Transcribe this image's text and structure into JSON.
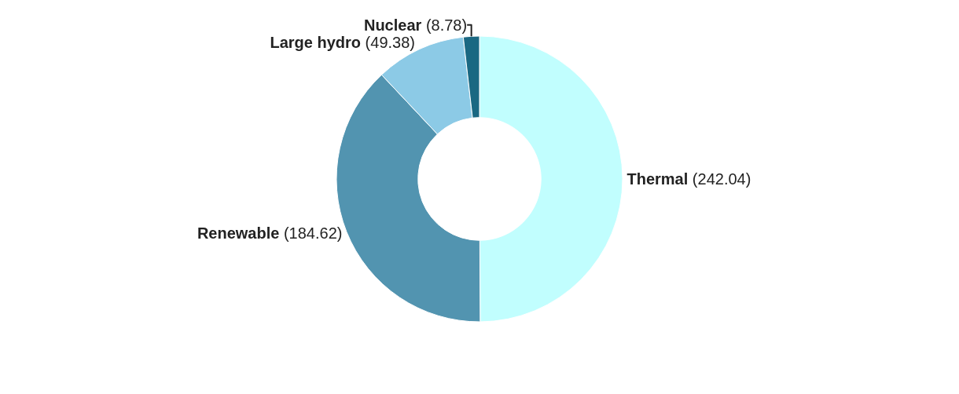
{
  "chart_data": {
    "type": "donut",
    "categories": [
      "Thermal",
      "Renewable",
      "Large hydro",
      "Nuclear"
    ],
    "values": [
      242.04,
      184.62,
      49.38,
      8.78
    ],
    "colors": [
      "#c1fefe",
      "#5294b0",
      "#8ccae6",
      "#1a6882"
    ],
    "value_labels": [
      "(242.04)",
      "(184.62)",
      "(49.38)",
      "(8.78)"
    ],
    "legend": false
  }
}
